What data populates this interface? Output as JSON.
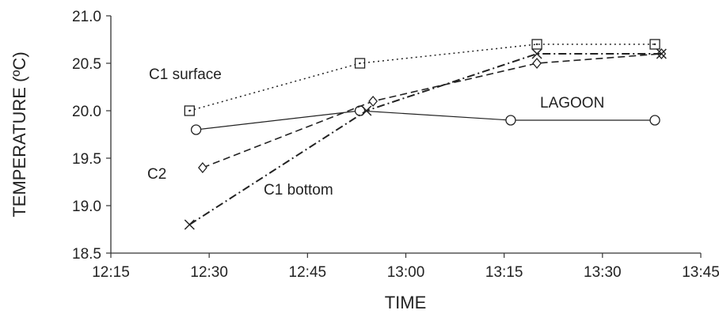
{
  "chart_data": {
    "type": "line",
    "title": "",
    "xlabel": "TIME",
    "ylabel": "TEMPERATURE (ºC)",
    "xlim": [
      "12:15",
      "13:45"
    ],
    "ylim": [
      18.5,
      21.0
    ],
    "x_ticks": [
      "12:15",
      "12:30",
      "12:45",
      "13:00",
      "13:15",
      "13:30",
      "13:45"
    ],
    "y_ticks": [
      "18.5",
      "19.0",
      "19.5",
      "20.0",
      "20.5",
      "21.0"
    ],
    "grid": false,
    "legend": "none",
    "series": [
      {
        "name": "C1 surface",
        "style": "dotted",
        "marker": "square",
        "x": [
          "12:27",
          "12:53",
          "13:20",
          "13:38"
        ],
        "values": [
          20.0,
          20.5,
          20.7,
          20.7
        ]
      },
      {
        "name": "LAGOON",
        "style": "solid",
        "marker": "circle",
        "x": [
          "12:28",
          "12:53",
          "13:16",
          "13:38"
        ],
        "values": [
          19.8,
          20.0,
          19.9,
          19.9
        ]
      },
      {
        "name": "C2",
        "style": "dashed",
        "marker": "diamond",
        "x": [
          "12:29",
          "12:55",
          "13:20",
          "13:39"
        ],
        "values": [
          19.4,
          20.1,
          20.5,
          20.6
        ]
      },
      {
        "name": "C1 bottom",
        "style": "dashdot",
        "marker": "x",
        "x": [
          "12:27",
          "12:54",
          "13:20",
          "13:39"
        ],
        "values": [
          18.8,
          20.0,
          20.6,
          20.6
        ]
      }
    ]
  }
}
